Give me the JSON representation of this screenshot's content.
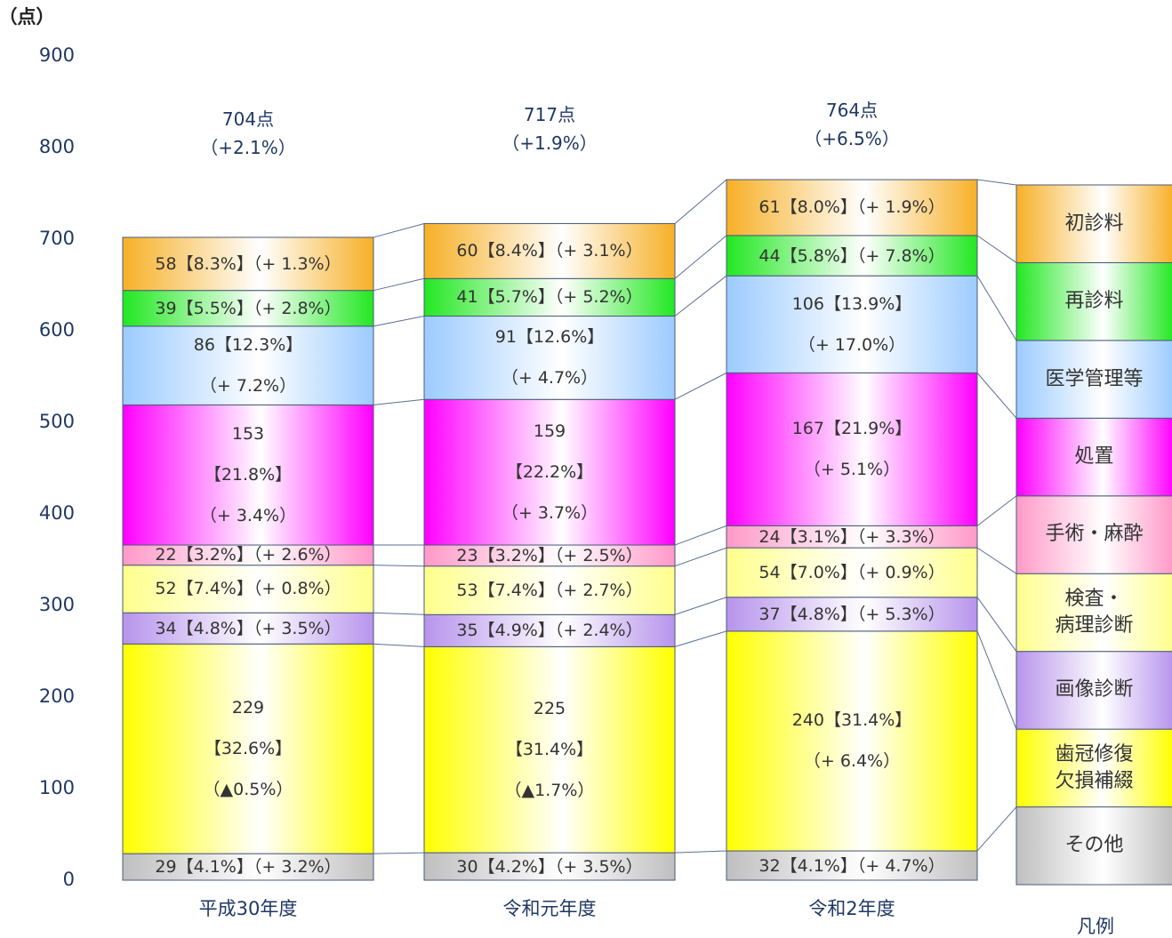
{
  "chart_data": {
    "type": "stacked_bar",
    "y_label": "（点）",
    "legend_title": "凡例",
    "categories": [
      "平成30年度",
      "令和元年度",
      "令和2年度"
    ],
    "totals": [
      "704点\n（+2.1%）",
      "717点\n（+1.9%）",
      "764点\n（+6.5%）"
    ],
    "ylim": [
      0,
      900
    ],
    "yticks": [
      0,
      100,
      200,
      300,
      400,
      500,
      600,
      700,
      800,
      900
    ],
    "series": [
      {
        "name": "その他",
        "color": "#bfbfbf",
        "values": [
          29,
          30,
          32
        ],
        "value_labels": [
          "29【4.1%】（+ 3.2%）",
          "30【4.2%】（+ 3.5%）",
          "32【4.1%】（+ 4.7%）"
        ]
      },
      {
        "name": "歯冠修復\n欠損補綴",
        "color": "#ffff00",
        "values": [
          229,
          225,
          240
        ],
        "value_labels": [
          "229\n【32.6%】\n（▲0.5%）",
          "225\n【31.4%】\n（▲1.7%）",
          "240【31.4%】\n（+ 6.4%）"
        ]
      },
      {
        "name": "画像診断",
        "color": "#b794ec",
        "values": [
          34,
          35,
          37
        ],
        "value_labels": [
          "34【4.8%】（+ 3.5%）",
          "35【4.9%】（+ 2.4%）",
          "37【4.8%】（+ 5.3%）"
        ]
      },
      {
        "name": "検査・\n病理診断",
        "color": "#ffff8c",
        "values": [
          52,
          53,
          54
        ],
        "value_labels": [
          "52【7.4%】（+ 0.8%）",
          "53【7.4%】（+ 2.7%）",
          "54【7.0%】（+ 0.9%）"
        ]
      },
      {
        "name": "手術・麻酔",
        "color": "#ff99c8",
        "values": [
          22,
          23,
          24
        ],
        "value_labels": [
          "22【3.2%】（+ 2.6%）",
          "23【3.2%】（+ 2.5%）",
          "24【3.1%】（+ 3.3%）"
        ]
      },
      {
        "name": "処置",
        "color": "#ff00ff",
        "values": [
          153,
          159,
          167
        ],
        "value_labels": [
          "153\n【21.8%】\n（+ 3.4%）",
          "159\n【22.2%】\n（+ 3.7%）",
          "167【21.9%】\n（+ 5.1%）"
        ]
      },
      {
        "name": "医学管理等",
        "color": "#9ccbff",
        "values": [
          86,
          91,
          106
        ],
        "value_labels": [
          "86【12.3%】\n（+ 7.2%）",
          "91【12.6%】\n（+ 4.7%）",
          "106【13.9%】\n（+ 17.0%）"
        ]
      },
      {
        "name": "再診料",
        "color": "#22e822",
        "values": [
          39,
          41,
          44
        ],
        "value_labels": [
          "39【5.5%】（+ 2.8%）",
          "41【5.7%】（+ 5.2%）",
          "44【5.8%】（+ 7.8%）"
        ]
      },
      {
        "name": "初診料",
        "color": "#f7b027",
        "values": [
          58,
          60,
          61
        ],
        "value_labels": [
          "58【8.3%】（+ 1.3%）",
          "60【8.4%】（+ 3.1%）",
          "61【8.0%】（+ 1.9%）"
        ]
      }
    ]
  }
}
